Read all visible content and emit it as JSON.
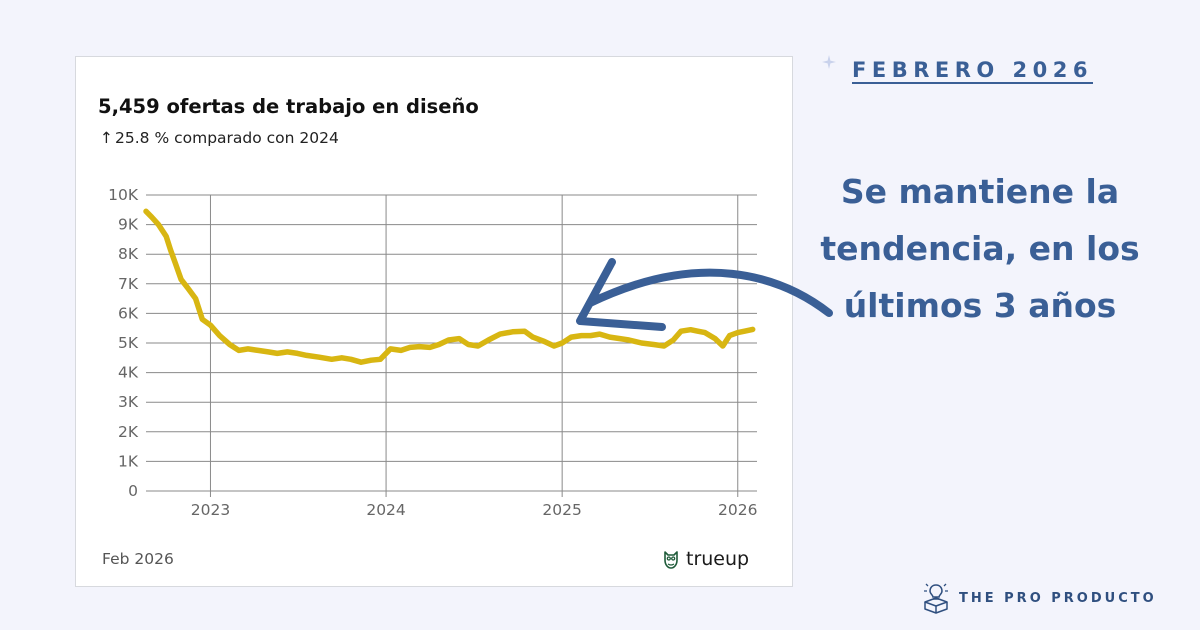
{
  "card": {
    "title": "5,459 ofertas de trabajo en diseño",
    "subtitle_arrow": "↑",
    "subtitle": "25.8 % comparado con 2024",
    "footer_date": "Feb 2026",
    "brand_name": "trueup",
    "brand_icon": "owl-icon"
  },
  "side": {
    "date_label": "FEBRERO 2026",
    "headline": "Se mantiene la tendencia, en los últimos 3 años",
    "footer_brand": "THE PRO PRODUCTO",
    "footer_icon": "lightbulb-box-icon",
    "annotation_arrow_icon": "curved-arrow-icon"
  },
  "colors": {
    "background": "#f3f4fc",
    "line": "#d8b612",
    "accent": "#3a5f96",
    "grid": "#8a8a8a"
  },
  "chart_data": {
    "type": "line",
    "title": "5,459 ofertas de trabajo en diseño",
    "subtitle": "↑25.8 % comparado con 2024",
    "xlabel": "",
    "ylabel": "",
    "ylim": [
      0,
      10000
    ],
    "xlim": [
      "2022-08-20",
      "2026-02-10"
    ],
    "y_ticks": [
      0,
      1000,
      2000,
      3000,
      4000,
      5000,
      6000,
      7000,
      8000,
      9000,
      10000
    ],
    "y_tick_labels": [
      "0",
      "1K",
      "2K",
      "3K",
      "4K",
      "5K",
      "6K",
      "7K",
      "8K",
      "9K",
      "10K"
    ],
    "x_ticks": [
      "2023-01-01",
      "2024-01-01",
      "2025-01-01",
      "2026-01-01"
    ],
    "x_tick_labels": [
      "2023",
      "2024",
      "2025",
      "2026"
    ],
    "grid": true,
    "series": [
      {
        "name": "",
        "color": "#d8b612",
        "points": [
          [
            "2022-08-20",
            9450
          ],
          [
            "2022-09-01",
            9250
          ],
          [
            "2022-09-15",
            9000
          ],
          [
            "2022-10-01",
            8600
          ],
          [
            "2022-10-10",
            8150
          ],
          [
            "2022-10-20",
            7700
          ],
          [
            "2022-11-01",
            7150
          ],
          [
            "2022-11-15",
            6850
          ],
          [
            "2022-12-01",
            6500
          ],
          [
            "2022-12-15",
            5800
          ],
          [
            "2023-01-01",
            5600
          ],
          [
            "2023-01-20",
            5250
          ],
          [
            "2023-02-10",
            4950
          ],
          [
            "2023-03-01",
            4750
          ],
          [
            "2023-03-20",
            4800
          ],
          [
            "2023-04-10",
            4750
          ],
          [
            "2023-05-01",
            4700
          ],
          [
            "2023-05-20",
            4650
          ],
          [
            "2023-06-10",
            4700
          ],
          [
            "2023-07-01",
            4650
          ],
          [
            "2023-07-20",
            4580
          ],
          [
            "2023-08-15",
            4520
          ],
          [
            "2023-09-10",
            4450
          ],
          [
            "2023-10-01",
            4500
          ],
          [
            "2023-10-20",
            4450
          ],
          [
            "2023-11-10",
            4350
          ],
          [
            "2023-12-01",
            4420
          ],
          [
            "2023-12-20",
            4450
          ],
          [
            "2024-01-10",
            4800
          ],
          [
            "2024-02-01",
            4750
          ],
          [
            "2024-02-20",
            4850
          ],
          [
            "2024-03-10",
            4880
          ],
          [
            "2024-04-01",
            4850
          ],
          [
            "2024-04-20",
            4950
          ],
          [
            "2024-05-10",
            5100
          ],
          [
            "2024-06-01",
            5150
          ],
          [
            "2024-06-20",
            4950
          ],
          [
            "2024-07-10",
            4900
          ],
          [
            "2024-08-01",
            5100
          ],
          [
            "2024-08-25",
            5300
          ],
          [
            "2024-09-20",
            5380
          ],
          [
            "2024-10-15",
            5400
          ],
          [
            "2024-11-01",
            5200
          ],
          [
            "2024-11-25",
            5050
          ],
          [
            "2024-12-15",
            4900
          ],
          [
            "2025-01-01",
            5000
          ],
          [
            "2025-01-20",
            5200
          ],
          [
            "2025-02-10",
            5250
          ],
          [
            "2025-03-01",
            5250
          ],
          [
            "2025-03-20",
            5300
          ],
          [
            "2025-04-10",
            5200
          ],
          [
            "2025-05-01",
            5150
          ],
          [
            "2025-05-20",
            5100
          ],
          [
            "2025-06-15",
            5000
          ],
          [
            "2025-07-10",
            4950
          ],
          [
            "2025-08-01",
            4900
          ],
          [
            "2025-08-20",
            5100
          ],
          [
            "2025-09-05",
            5400
          ],
          [
            "2025-09-25",
            5450
          ],
          [
            "2025-10-10",
            5400
          ],
          [
            "2025-10-25",
            5350
          ],
          [
            "2025-11-15",
            5150
          ],
          [
            "2025-12-01",
            4900
          ],
          [
            "2025-12-15",
            5250
          ],
          [
            "2026-01-01",
            5350
          ],
          [
            "2026-01-15",
            5400
          ],
          [
            "2026-02-01",
            5459
          ]
        ]
      }
    ]
  }
}
